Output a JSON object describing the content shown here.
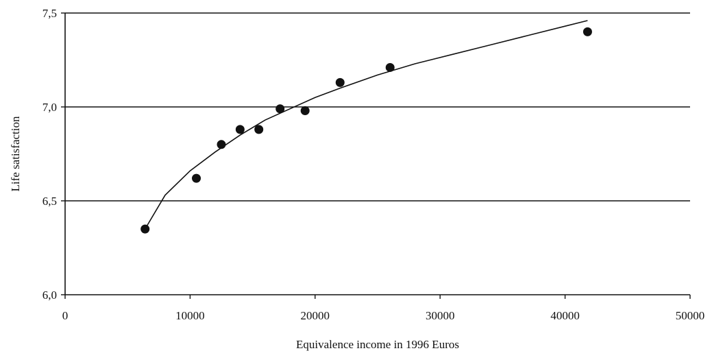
{
  "chart_data": {
    "type": "scatter",
    "title": "",
    "xlabel": "Equivalence income in 1996 Euros",
    "ylabel": "Life satisfaction",
    "xlim": [
      0,
      50000
    ],
    "ylim": [
      6.0,
      7.5
    ],
    "x_ticks": [
      0,
      10000,
      20000,
      30000,
      40000,
      50000
    ],
    "x_tick_labels": [
      "0",
      "10000",
      "20000",
      "30000",
      "40000",
      "50000"
    ],
    "y_ticks": [
      6.0,
      6.5,
      7.0,
      7.5
    ],
    "y_tick_labels": [
      "6,0",
      "6,5",
      "7,0",
      "7,5"
    ],
    "grid": "horizontal",
    "marker_color": "#111111",
    "line_color": "#111111",
    "points": [
      {
        "x": 6400,
        "y": 6.35
      },
      {
        "x": 10500,
        "y": 6.62
      },
      {
        "x": 12500,
        "y": 6.8
      },
      {
        "x": 14000,
        "y": 6.88
      },
      {
        "x": 15500,
        "y": 6.88
      },
      {
        "x": 17200,
        "y": 6.99
      },
      {
        "x": 19200,
        "y": 6.98
      },
      {
        "x": 22000,
        "y": 7.13
      },
      {
        "x": 26000,
        "y": 7.21
      },
      {
        "x": 41800,
        "y": 7.4
      }
    ],
    "trendline": {
      "type": "logarithmic",
      "x": [
        6400,
        8000,
        10000,
        12000,
        14000,
        16000,
        18000,
        20000,
        22000,
        25000,
        28000,
        31000,
        34000,
        37000,
        40000,
        41800
      ],
      "y": [
        6.35,
        6.53,
        6.66,
        6.76,
        6.85,
        6.93,
        6.99,
        7.05,
        7.1,
        7.17,
        7.23,
        7.28,
        7.33,
        7.38,
        7.43,
        7.46
      ]
    }
  }
}
